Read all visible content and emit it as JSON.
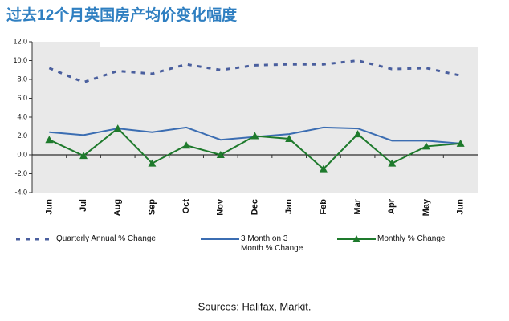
{
  "chart_data": {
    "type": "line",
    "title": "过去12个月英国房产均价变化幅度",
    "source": "Sources: Halifax, Markit.",
    "categories": [
      "Jun",
      "Jul",
      "Aug",
      "Sep",
      "Oct",
      "Nov",
      "Dec",
      "Jan",
      "Feb",
      "Mar",
      "Apr",
      "May",
      "Jun"
    ],
    "series": [
      {
        "name": "Quarterly Annual % Change",
        "color": "#4a5f9e",
        "dash": true,
        "marker": false,
        "values": [
          9.2,
          7.7,
          8.9,
          8.6,
          9.6,
          9.0,
          9.5,
          9.6,
          9.6,
          10.0,
          9.1,
          9.2,
          8.4
        ]
      },
      {
        "name": "3 Month on 3 Month % Change",
        "color": "#3b6db2",
        "dash": false,
        "marker": false,
        "values": [
          2.4,
          2.1,
          2.8,
          2.4,
          2.9,
          1.6,
          1.9,
          2.2,
          2.9,
          2.8,
          1.5,
          1.5,
          1.2
        ]
      },
      {
        "name": "Monthly % Change",
        "color": "#1e7a2c",
        "dash": false,
        "marker": true,
        "values": [
          1.6,
          -0.1,
          2.8,
          -0.9,
          1.0,
          0.0,
          2.0,
          1.7,
          -1.5,
          2.2,
          -0.9,
          0.9,
          1.2
        ]
      }
    ],
    "ylim": [
      -4,
      12
    ],
    "yticks": [
      {
        "value": -4,
        "label": "-4.0"
      },
      {
        "value": -2,
        "label": "-2.0"
      },
      {
        "value": 0,
        "label": "0.0"
      },
      {
        "value": 2,
        "label": "2.0"
      },
      {
        "value": 4,
        "label": "4.0"
      },
      {
        "value": 6,
        "label": "6.0"
      },
      {
        "value": 8,
        "label": "8.0"
      },
      {
        "value": 10,
        "label": "10.0"
      },
      {
        "value": 12,
        "label": "12.0"
      }
    ]
  }
}
